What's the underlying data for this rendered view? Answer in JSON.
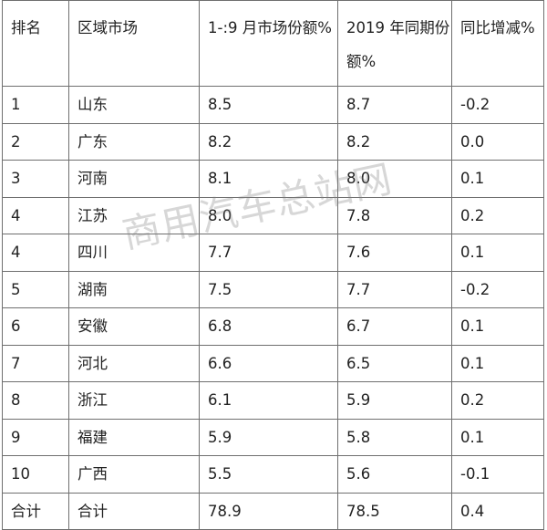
{
  "table": {
    "headers": [
      "排名",
      "区域市场",
      "1-:9 月市场份额%",
      "2019 年同期份额%",
      "同比增减%"
    ],
    "rows": [
      [
        "1",
        "山东",
        "8.5",
        "8.7",
        "-0.2"
      ],
      [
        "2",
        "广东",
        "8.2",
        "8.2",
        "0.0"
      ],
      [
        "3",
        "河南",
        "8.1",
        "8.0",
        "0.1"
      ],
      [
        "4",
        "江苏",
        "8.0",
        "7.8",
        "0.2"
      ],
      [
        "4",
        "四川",
        "7.7",
        "7.6",
        "0.1"
      ],
      [
        "5",
        "湖南",
        "7.5",
        "7.7",
        "-0.2"
      ],
      [
        "6",
        "安徽",
        "6.8",
        "6.7",
        "0.1"
      ],
      [
        "7",
        "河北",
        "6.6",
        "6.5",
        "0.1"
      ],
      [
        "8",
        "浙江",
        "6.1",
        "5.9",
        "0.2"
      ],
      [
        "9",
        "福建",
        "5.9",
        "5.8",
        "0.1"
      ],
      [
        "10",
        "广西",
        "5.5",
        "5.6",
        "-0.1"
      ],
      [
        "合计",
        "合计",
        "78.9",
        "78.5",
        "0.4"
      ]
    ]
  },
  "watermark": "商用汽车总站网"
}
